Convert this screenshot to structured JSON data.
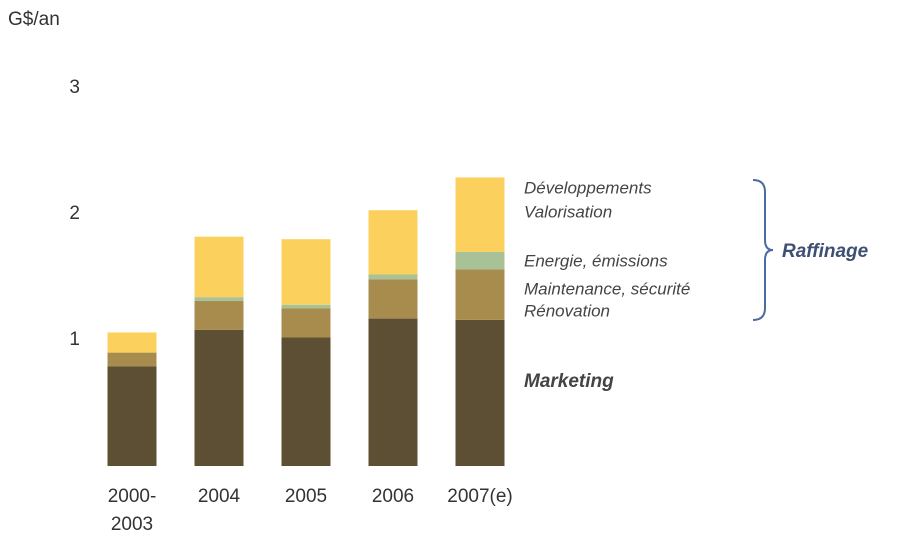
{
  "chart_data": {
    "type": "stacked_bar",
    "y_axis_label": "G$/an",
    "annotation": "Raffinage",
    "categories": [
      [
        "2000-",
        "2003"
      ],
      [
        "2004"
      ],
      [
        "2005"
      ],
      [
        "2006"
      ],
      [
        "2007(e)"
      ]
    ],
    "series": [
      {
        "name": [
          "Marketing"
        ],
        "color": "#5c4f33",
        "values": [
          0.79,
          1.08,
          1.02,
          1.17,
          1.16
        ]
      },
      {
        "name": [
          "Maintenance, sécurité",
          "Rénovation"
        ],
        "color": "#a88c4e",
        "values": [
          0.11,
          0.23,
          0.23,
          0.31,
          0.4
        ]
      },
      {
        "name": [
          "Energie, émissions"
        ],
        "color": "#a9c196",
        "values": [
          0,
          0.03,
          0.03,
          0.04,
          0.14
        ]
      },
      {
        "name": [
          "Développements",
          "Valorisation"
        ],
        "color": "#fbd05c",
        "values": [
          0.16,
          0.48,
          0.52,
          0.51,
          0.59
        ]
      }
    ],
    "ylim": [
      0,
      3
    ],
    "yticks": [
      1,
      2,
      3
    ],
    "grid": false
  }
}
